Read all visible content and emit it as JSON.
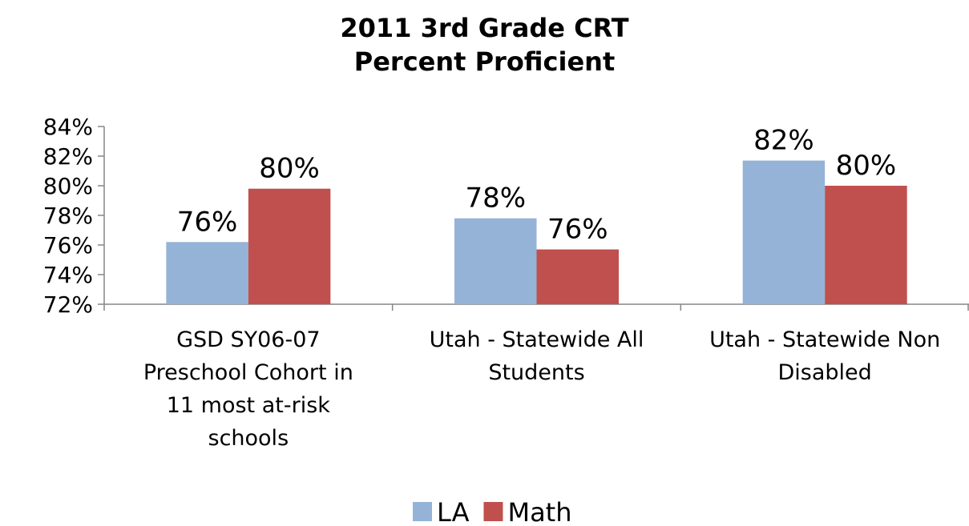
{
  "chart_data": {
    "type": "bar",
    "title": "2011 3rd Grade CRT\nPercent Proficient",
    "categories": [
      "GSD SY06-07\nPreschool Cohort in\n11 most at-risk\nschools",
      "Utah - Statewide All\nStudents",
      "Utah - Statewide Non\nDisabled"
    ],
    "series": [
      {
        "name": "LA",
        "color": "#95b3d7",
        "values": [
          76.2,
          77.8,
          81.7
        ],
        "value_labels": [
          "76%",
          "78%",
          "82%"
        ]
      },
      {
        "name": "Math",
        "color": "#c0504d",
        "values": [
          79.8,
          75.7,
          80.0
        ],
        "value_labels": [
          "80%",
          "76%",
          "80%"
        ]
      }
    ],
    "ylim": [
      72,
      84
    ],
    "yticks": [
      {
        "value": 72,
        "label": "72%"
      },
      {
        "value": 74,
        "label": "74%"
      },
      {
        "value": 76,
        "label": "76%"
      },
      {
        "value": 78,
        "label": "78%"
      },
      {
        "value": 80,
        "label": "80%"
      },
      {
        "value": 82,
        "label": "82%"
      },
      {
        "value": 84,
        "label": "84%"
      }
    ],
    "legend": "bottom"
  }
}
